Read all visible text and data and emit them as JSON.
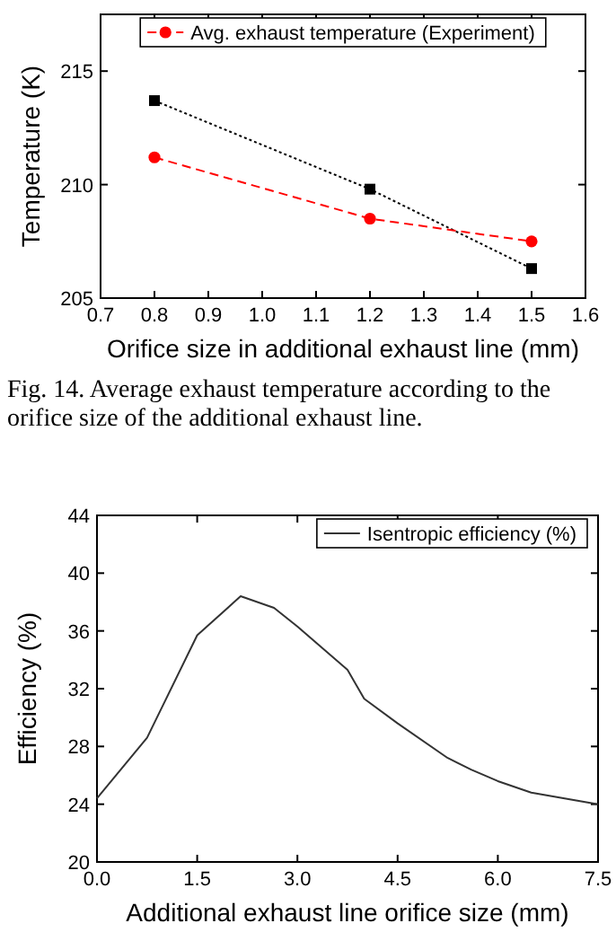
{
  "chart_data": [
    {
      "type": "line",
      "xlabel": "Orifice size in additional exhaust line (mm)",
      "ylabel": "Temperature (K)",
      "x": [
        0.8,
        1.2,
        1.5
      ],
      "series": [
        {
          "color": "#000000",
          "values": [
            213.7,
            209.8,
            206.3
          ],
          "marker": "square",
          "line_style": "dotted"
        },
        {
          "name": "Avg. exhaust temperature (Experiment)",
          "color": "#ff0000",
          "values": [
            211.2,
            208.5,
            207.5
          ],
          "marker": "circle",
          "line_style": "dashed"
        }
      ],
      "xlim": [
        0.7,
        1.6
      ],
      "xticks": [
        0.7,
        {
          "value": 0.8,
          "label": "0.8"
        },
        {
          "value": 0.9,
          "label": "0.9"
        },
        {
          "value": 1.0,
          "label": "1.0"
        },
        1.1,
        1.2,
        1.3,
        1.4,
        1.5,
        1.6
      ],
      "ylim": [
        205,
        217.5
      ],
      "yticks": [
        205,
        210,
        215
      ],
      "grid": false,
      "legend": "top",
      "annotations": [
        "Fig. 14. Average exhaust temperature according to the orifice size of the additional exhaust line."
      ]
    },
    {
      "type": "line",
      "xlabel": "Additional exhaust line orifice size (mm)",
      "ylabel": "Efficiency (%)",
      "x": [
        0,
        0.75,
        1.5,
        2.15,
        2.65,
        3.0,
        3.75,
        4.0,
        4.5,
        5.25,
        5.6,
        6.0,
        6.5,
        7.0,
        7.5
      ],
      "series": [
        {
          "name": "Isentropic efficiency (%)",
          "color": "#333333",
          "values": [
            24.4,
            28.6,
            35.7,
            38.4,
            37.6,
            36.3,
            33.3,
            31.3,
            29.6,
            27.2,
            26.4,
            25.6,
            24.8,
            24.4,
            24.0
          ],
          "marker": "none",
          "line_style": "solid"
        }
      ],
      "xlim": [
        0,
        7.5
      ],
      "xticks": [
        {
          "value": 0,
          "label": "0.0"
        },
        1.5,
        {
          "value": 3,
          "label": "3.0"
        },
        4.5,
        {
          "value": 6,
          "label": "6.0"
        },
        7.5
      ],
      "ylim": [
        20,
        44
      ],
      "yticks": [
        20,
        24,
        28,
        32,
        36,
        40,
        44
      ],
      "grid": false,
      "legend": "top right"
    }
  ]
}
